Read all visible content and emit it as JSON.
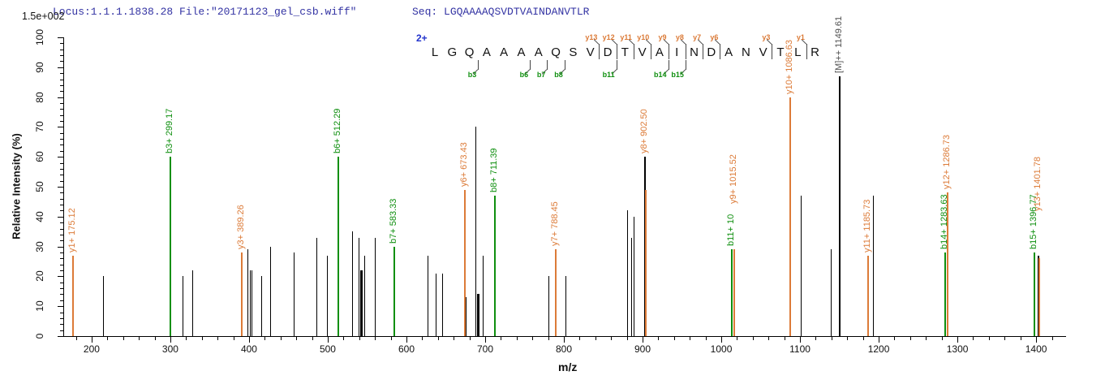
{
  "header": {
    "scale_label": "1.5e+002",
    "locus_text": "Locus:1.1.1.1838.28 File:\"20171123_gel_csb.wiff\"",
    "seq_label": "Seq:",
    "seq_value": "LGQAAAAQSVDTVAINDANVTLR"
  },
  "colors": {
    "y_ion": "#dc7b38",
    "b_ion": "#0f8f0f",
    "black_peak": "#000000",
    "precursor_label": "#4f4f4f",
    "header_navy": "#3333a3",
    "charge_blue": "#2233cc",
    "flag_mark": "#444444"
  },
  "chart_data": {
    "type": "bar",
    "title": "",
    "xlabel": "m/z",
    "ylabel": "Relative  Intensity (%)",
    "xlim": [
      164,
      1437
    ],
    "ylim": [
      0,
      100
    ],
    "x_major_ticks": [
      200,
      300,
      400,
      500,
      600,
      700,
      800,
      900,
      1000,
      1100,
      1200,
      1300,
      1400
    ],
    "x_minor_step": 20,
    "y_major_ticks": [
      0,
      10,
      20,
      30,
      40,
      50,
      60,
      70,
      80,
      90,
      100
    ],
    "y_minor_step": 2,
    "grid": false,
    "precursor_charge": "2+",
    "peptide": "LGQAAAAQSVDTVAINDANVTLR",
    "labeled_peaks": [
      {
        "ion": "y1",
        "mz": 175.12,
        "h": 27,
        "series": "y",
        "label": "y1+ 175.12"
      },
      {
        "ion": "b3",
        "mz": 299.17,
        "h": 60,
        "series": "b",
        "label": "b3+ 299.17"
      },
      {
        "ion": "y3",
        "mz": 389.26,
        "h": 28,
        "series": "y",
        "label": "y3+ 389.26"
      },
      {
        "ion": "b6",
        "mz": 512.29,
        "h": 60,
        "series": "b",
        "label": "b6+ 512.29"
      },
      {
        "ion": "b7",
        "mz": 583.33,
        "h": 30,
        "series": "b",
        "label": "b7+ 583.33"
      },
      {
        "ion": "y6",
        "mz": 673.43,
        "h": 49,
        "series": "y",
        "label": "y6+ 673.43"
      },
      {
        "ion": "b8",
        "mz": 711.39,
        "h": 47,
        "series": "b",
        "label": "b8+ 711.39"
      },
      {
        "ion": "y7",
        "mz": 788.45,
        "h": 29,
        "series": "y",
        "label": "y7+ 788.45"
      },
      {
        "ion": "y8",
        "mz": 902.5,
        "h": 60,
        "series": "y",
        "label": "y8+ 902.50",
        "black_base": true,
        "overlay_h": 49
      },
      {
        "ion": "b11",
        "mz": 1012.52,
        "h": 29,
        "series": "b",
        "label": "b11+ 10"
      },
      {
        "ion": "y9",
        "mz": 1015.52,
        "h": 29,
        "series": "y",
        "label": "y9+ 1015.52",
        "label_gap": 56
      },
      {
        "ion": "y10",
        "mz": 1086.63,
        "h": 80,
        "series": "y",
        "label": "y10+ 1086.63",
        "black_base_h": 22
      },
      {
        "ion": "M",
        "mz": 1149.61,
        "h": 87,
        "series": "precursor",
        "label": "[M]++ 1149.61"
      },
      {
        "ion": "y11",
        "mz": 1185.73,
        "h": 27,
        "series": "y",
        "label": "y11+ 1185.73"
      },
      {
        "ion": "b14",
        "mz": 1283.63,
        "h": 28,
        "series": "b",
        "label": "b14+ 1283.63"
      },
      {
        "ion": "y12",
        "mz": 1286.73,
        "h": 48,
        "series": "y",
        "label": "y12+ 1286.73"
      },
      {
        "ion": "b15",
        "mz": 1396.77,
        "h": 28,
        "series": "b",
        "label": "b15+ 1396.77"
      },
      {
        "ion": "y13",
        "mz": 1401.78,
        "h": 27,
        "series": "y",
        "label": "y13+ 1401.78",
        "black_base": true,
        "overlay_h": 26,
        "label_gap": 55
      }
    ],
    "unlabeled_peaks": [
      [
        215,
        20
      ],
      [
        316,
        20
      ],
      [
        328,
        22
      ],
      [
        398,
        29
      ],
      [
        401,
        22
      ],
      [
        403,
        22
      ],
      [
        416,
        20
      ],
      [
        427,
        30
      ],
      [
        457,
        28
      ],
      [
        486,
        33
      ],
      [
        499,
        27
      ],
      [
        531,
        35
      ],
      [
        539,
        33
      ],
      [
        541,
        22,
        1
      ],
      [
        546,
        27
      ],
      [
        560,
        33
      ],
      [
        627,
        27
      ],
      [
        637,
        21
      ],
      [
        645,
        21
      ],
      [
        675,
        13
      ],
      [
        688,
        70
      ],
      [
        690,
        14,
        1
      ],
      [
        697,
        27
      ],
      [
        780,
        20
      ],
      [
        802,
        20
      ],
      [
        880,
        42
      ],
      [
        886,
        33
      ],
      [
        889,
        40
      ],
      [
        1101,
        47
      ],
      [
        1139,
        29
      ],
      [
        1193,
        47
      ]
    ],
    "sequence_flags": {
      "y": [
        {
          "ion": "y13",
          "gap_after": 10
        },
        {
          "ion": "y12",
          "gap_after": 11
        },
        {
          "ion": "y11",
          "gap_after": 12
        },
        {
          "ion": "y10",
          "gap_after": 13
        },
        {
          "ion": "y9",
          "gap_after": 14
        },
        {
          "ion": "y8",
          "gap_after": 15
        },
        {
          "ion": "y7",
          "gap_after": 16
        },
        {
          "ion": "y6",
          "gap_after": 17
        },
        {
          "ion": "y3",
          "gap_after": 20
        },
        {
          "ion": "y1",
          "gap_after": 22
        }
      ],
      "b": [
        {
          "ion": "b3",
          "gap_after": 3
        },
        {
          "ion": "b6",
          "gap_after": 6
        },
        {
          "ion": "b7",
          "gap_after": 7
        },
        {
          "ion": "b8",
          "gap_after": 8
        },
        {
          "ion": "b11",
          "gap_after": 11
        },
        {
          "ion": "b14",
          "gap_after": 14
        },
        {
          "ion": "b15",
          "gap_after": 15
        }
      ]
    }
  }
}
